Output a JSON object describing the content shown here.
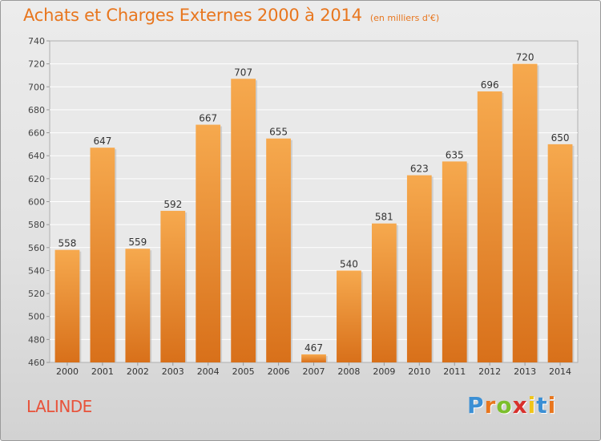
{
  "chart_data": {
    "type": "bar",
    "title": "Achats et Charges Externes 2000 à 2014",
    "subtitle": "(en milliers d'€)",
    "categories": [
      "2000",
      "2001",
      "2002",
      "2003",
      "2004",
      "2005",
      "2006",
      "2007",
      "2008",
      "2009",
      "2010",
      "2011",
      "2012",
      "2013",
      "2014"
    ],
    "values": [
      558,
      647,
      559,
      592,
      667,
      707,
      655,
      467,
      540,
      581,
      623,
      635,
      696,
      720,
      650
    ],
    "data_labels": [
      "558",
      "647",
      "559",
      "592",
      "667",
      "707",
      "655",
      "467",
      "540",
      "581",
      "623",
      "635",
      "696",
      "720",
      "650"
    ],
    "ylim": [
      460,
      740
    ],
    "yticks": [
      "460",
      "480",
      "500",
      "520",
      "540",
      "560",
      "580",
      "600",
      "620",
      "640",
      "660",
      "680",
      "700",
      "720",
      "740"
    ],
    "grid": true,
    "bar_color_top": "#f6a94e",
    "bar_color_bottom": "#d8701a"
  },
  "commune": "LALINDE",
  "logo": {
    "letters": [
      "P",
      "r",
      "o",
      "x",
      "i",
      "t",
      "i"
    ],
    "colors": [
      "#3b8fd4",
      "#e8761e",
      "#7cbf2c",
      "#d8302c",
      "#f0c419",
      "#3b8fd4",
      "#e8761e"
    ]
  },
  "theme": {
    "title_color": "#e8761e",
    "commune_color": "#e8523a"
  }
}
